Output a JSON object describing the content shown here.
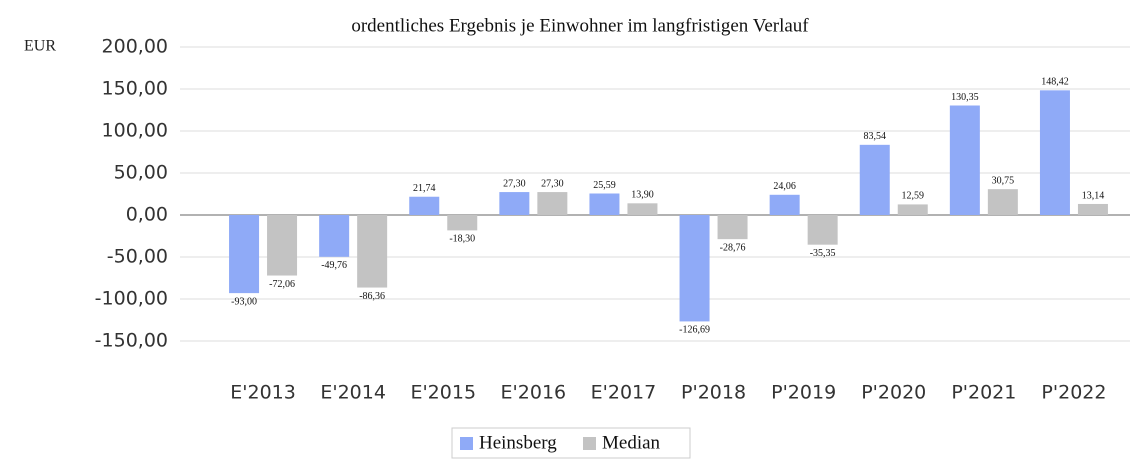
{
  "chart_data": {
    "type": "bar",
    "title": "ordentliches Ergebnis je Einwohner im langfristigen Verlauf",
    "y_label": "EUR",
    "categories": [
      "E'2013",
      "E'2014",
      "E'2015",
      "E'2016",
      "E'2017",
      "P'2018",
      "P'2019",
      "P'2020",
      "P'2021",
      "P'2022"
    ],
    "series": [
      {
        "name": "Heinsberg",
        "color": "#8faaf7",
        "values": [
          -93.0,
          -49.76,
          21.74,
          27.3,
          25.59,
          -126.69,
          24.06,
          83.54,
          130.35,
          148.42
        ],
        "value_labels": [
          "-93,00",
          "-49,76",
          "21,74",
          "27,30",
          "25,59",
          "-126,69",
          "24,06",
          "83,54",
          "130,35",
          "148,42"
        ]
      },
      {
        "name": "Median",
        "color": "#c3c3c3",
        "values": [
          -72.06,
          -86.36,
          -18.3,
          27.3,
          13.9,
          -28.76,
          -35.35,
          12.59,
          30.75,
          13.14
        ],
        "value_labels": [
          "-72,06",
          "-86,36",
          "-18,30",
          "27,30",
          "13,90",
          "-28,76",
          "-35,35",
          "12,59",
          "30,75",
          "13,14"
        ]
      }
    ],
    "ylim": [
      -150,
      200
    ],
    "yticks": [
      {
        "value": -150,
        "label": "-150,00"
      },
      {
        "value": -100,
        "label": "-100,00"
      },
      {
        "value": -50,
        "label": "-50,00"
      },
      {
        "value": 0,
        "label": "0,00"
      },
      {
        "value": 50,
        "label": "50,00"
      },
      {
        "value": 100,
        "label": "100,00"
      },
      {
        "value": 150,
        "label": "150,00"
      },
      {
        "value": 200,
        "label": "200,00"
      }
    ],
    "grid": true,
    "legend": "bottom"
  }
}
